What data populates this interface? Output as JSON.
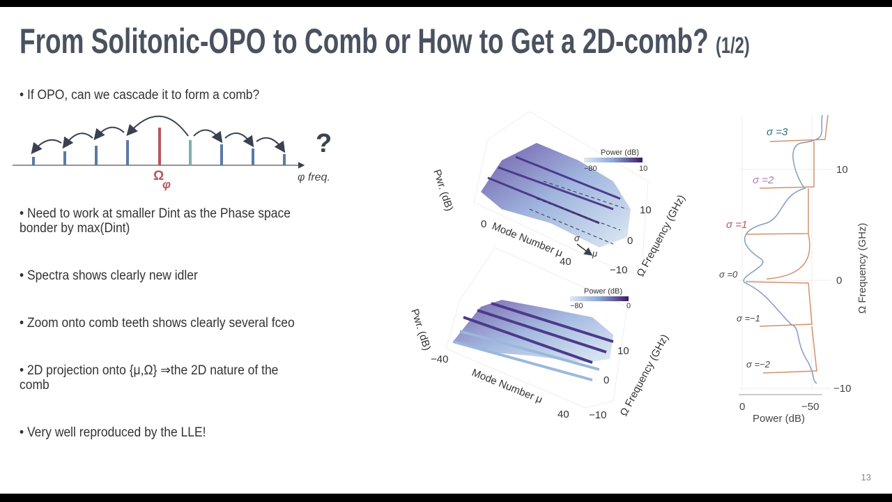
{
  "slide": {
    "title": "From Solitonic-OPO to Comb or How to Get a 2D-comb?",
    "title_suffix": "(1/2)",
    "bullets": [
      "If OPO, can we cascade it to form a comb?",
      "Need to work at smaller Dint as the Phase space bonder by max(Dint)",
      "Spectra shows clearly new idler",
      "Zoom onto comb teeth shows clearly several fceo",
      "2D projection onto {μ,Ω} ⇒the 2D nature of the comb",
      "Very well reproduced by the LLE!"
    ],
    "page_number": "13"
  },
  "comb_diagram": {
    "center_label": "Ω",
    "center_subscript": "φ",
    "axis_label": "φ freq.",
    "question": "?"
  },
  "surface_top": {
    "z_label": "Pwr. (dB)",
    "x_label": "Mode Number μ",
    "y_label": "Ω Frequency (GHz)",
    "colorbar_title": "Power (dB)",
    "colorbar_min": "−80",
    "colorbar_max": "10",
    "x_ticks": [
      "0",
      "40"
    ],
    "y_ticks": [
      "10",
      "0",
      "−10"
    ],
    "sigma_arrow": "σ",
    "mu_arrow": "μ"
  },
  "surface_bottom": {
    "z_label": "Pwr. (dB)",
    "x_label": "Mode Number μ",
    "y_label": "Ω Frequency (GHz)",
    "colorbar_title": "Power (dB)",
    "colorbar_min": "−80",
    "colorbar_max": "0",
    "x_ticks": [
      "−40",
      "40"
    ],
    "y_ticks": [
      "10",
      "0",
      "−10"
    ]
  },
  "spectrum": {
    "sigma_labels": [
      "σ =3",
      "σ =2",
      "σ =1",
      "σ =0",
      "σ =−1",
      "σ =−2"
    ],
    "y_label": "Ω Frequency (GHz)",
    "y_ticks": [
      "10",
      "0",
      "−10"
    ],
    "x_label": "Power (dB)",
    "x_ticks": [
      "0",
      "−50"
    ]
  }
}
